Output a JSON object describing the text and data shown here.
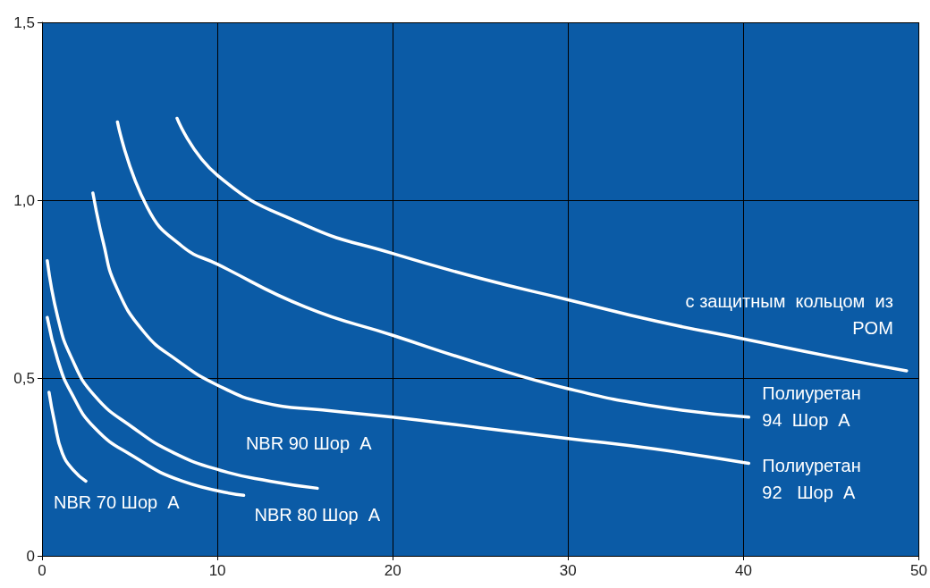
{
  "chart_data": {
    "type": "line",
    "xlim": [
      0,
      50
    ],
    "xticks": [
      0,
      10,
      20,
      30,
      40,
      50
    ],
    "ylim": [
      0,
      1.5
    ],
    "yticks": [
      {
        "value": 0,
        "label": "0"
      },
      {
        "value": 0.5,
        "label": "0,5"
      },
      {
        "value": 1,
        "label": "1,0"
      },
      {
        "value": 1.5,
        "label": "1,5"
      }
    ],
    "grid": true,
    "marker": "none",
    "line_style": "solid",
    "series": [
      {
        "name": "NBR 70 Шор  A",
        "color": "#ffffff",
        "x": [
          0.4,
          0.7,
          1.15,
          1.8,
          2.5
        ],
        "values": [
          0.46,
          0.38,
          0.29,
          0.24,
          0.21
        ]
      },
      {
        "name": "NBR 80 Шор  A",
        "color": "#ffffff",
        "x": [
          0.3,
          0.9,
          1.65,
          3,
          5.2,
          8,
          11.5
        ],
        "values": [
          0.67,
          0.55,
          0.46,
          0.36,
          0.28,
          0.21,
          0.17
        ]
      },
      {
        "name": "NBR 90 Шор  A",
        "color": "#ffffff",
        "x": [
          0.3,
          0.9,
          1.65,
          3,
          5.2,
          7.5,
          10.2,
          13,
          15.7
        ],
        "values": [
          0.83,
          0.67,
          0.56,
          0.45,
          0.36,
          0.29,
          0.24,
          0.21,
          0.19
        ]
      },
      {
        "name": "Полиуретан\n92   Шор  A",
        "color": "#ffffff",
        "x": [
          2.9,
          3.5,
          4.2,
          5.8,
          7.7,
          10,
          12.7,
          16,
          20,
          25,
          30,
          35,
          40.3
        ],
        "values": [
          1.02,
          0.88,
          0.76,
          0.63,
          0.55,
          0.48,
          0.43,
          0.41,
          0.39,
          0.36,
          0.33,
          0.3,
          0.26
        ]
      },
      {
        "name": "Полиуретан\n94  Шор  A",
        "color": "#ffffff",
        "x": [
          4.3,
          6,
          8,
          10,
          15,
          20,
          25,
          30,
          35,
          40.3
        ],
        "values": [
          1.22,
          0.98,
          0.87,
          0.82,
          0.7,
          0.62,
          0.54,
          0.47,
          0.42,
          0.39
        ]
      },
      {
        "name": "с защитным  кольцом  из\nPOM",
        "color": "#ffffff",
        "x": [
          7.7,
          10,
          15,
          20,
          25,
          30,
          35,
          40,
          45,
          49.3
        ],
        "values": [
          1.23,
          1.07,
          0.93,
          0.85,
          0.78,
          0.72,
          0.66,
          0.61,
          0.56,
          0.52
        ]
      }
    ]
  }
}
